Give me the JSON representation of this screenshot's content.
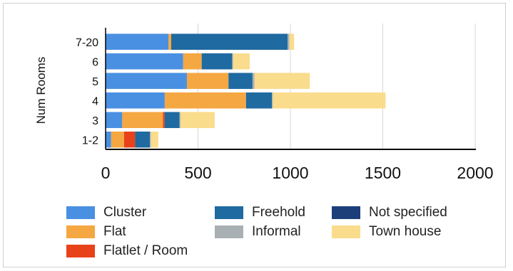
{
  "chart_data": {
    "type": "bar",
    "orientation": "horizontal",
    "stacked": true,
    "ylabel": "Num  Rooms",
    "xlabel": "",
    "categories": [
      "7-20",
      "6",
      "5",
      "4",
      "3",
      "1-2"
    ],
    "xlim": [
      0,
      2000
    ],
    "xticks": [
      "0",
      "500",
      "1000",
      "1500",
      "2000"
    ],
    "grid": "vertical",
    "legend_position": "bottom",
    "series": [
      {
        "name": "Cluster",
        "color": "#4a90e2",
        "values": [
          340,
          420,
          440,
          320,
          90,
          30
        ]
      },
      {
        "name": "Flat",
        "color": "#f5a742",
        "values": [
          15,
          100,
          225,
          440,
          220,
          70
        ]
      },
      {
        "name": "Flatlet / Room",
        "color": "#e8421b",
        "values": [
          0,
          0,
          0,
          0,
          10,
          60
        ]
      },
      {
        "name": "Freehold",
        "color": "#1f6aa0",
        "values": [
          630,
          165,
          130,
          140,
          80,
          80
        ]
      },
      {
        "name": "Informal",
        "color": "#a9b0b4",
        "values": [
          10,
          5,
          10,
          5,
          5,
          5
        ]
      },
      {
        "name": "Not specified",
        "color": "#1c3f7a",
        "values": [
          0,
          0,
          0,
          0,
          0,
          0
        ]
      },
      {
        "name": "Town house",
        "color": "#f9dc8c",
        "values": [
          25,
          90,
          300,
          610,
          185,
          40
        ]
      }
    ]
  },
  "legend": {
    "items": [
      {
        "label": "Cluster",
        "color": "#4a90e2"
      },
      {
        "label": "Freehold",
        "color": "#1f6aa0"
      },
      {
        "label": "Not specified",
        "color": "#1c3f7a"
      },
      {
        "label": "Flat",
        "color": "#f5a742"
      },
      {
        "label": "Informal",
        "color": "#a9b0b4"
      },
      {
        "label": "Town house",
        "color": "#f9dc8c"
      },
      {
        "label": "Flatlet / Room",
        "color": "#e8421b"
      }
    ]
  }
}
